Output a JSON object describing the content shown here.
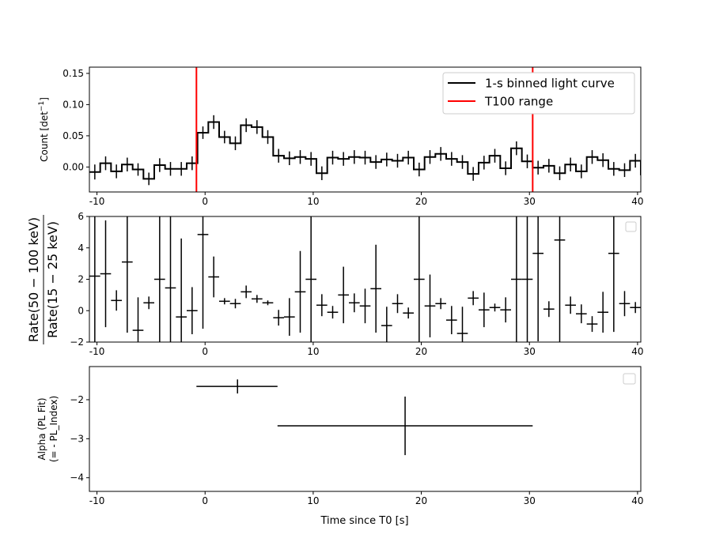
{
  "chart_data": [
    {
      "type": "line",
      "subtype": "step-with-errorbars",
      "ylabel_main": "Count [det",
      "ylabel_sup": "−1",
      "ylabel_end": "]",
      "xlim": [
        -10.7,
        40.3
      ],
      "ylim": [
        -0.04,
        0.16
      ],
      "xticks": [
        -10,
        0,
        10,
        20,
        30,
        40
      ],
      "yticks": [
        -0.05,
        0.0,
        0.05,
        0.1,
        0.15
      ],
      "ytick_labels": [
        "−0.05",
        "0.00",
        "0.05",
        "0.10",
        "0.15"
      ],
      "legend": {
        "placement": "top-right",
        "entries": [
          {
            "label": "1-s binned light curve",
            "color": "#000000"
          },
          {
            "label": "T100 range",
            "color": "#ff0000"
          }
        ]
      },
      "t100_range": [
        -0.8,
        30.3
      ],
      "bin_start": -10.7,
      "bin_width": 1.0,
      "values": [
        -0.008,
        0.006,
        -0.007,
        0.004,
        -0.004,
        -0.019,
        0.003,
        -0.003,
        -0.003,
        0.006,
        0.055,
        0.072,
        0.048,
        0.038,
        0.067,
        0.064,
        0.048,
        0.018,
        0.014,
        0.016,
        0.013,
        -0.01,
        0.015,
        0.013,
        0.016,
        0.015,
        0.008,
        0.012,
        0.01,
        0.015,
        -0.004,
        0.016,
        0.021,
        0.013,
        0.008,
        -0.011,
        0.007,
        0.018,
        -0.002,
        0.03,
        0.009,
        -0.001,
        0.002,
        -0.01,
        0.004,
        -0.007,
        0.016,
        0.011,
        -0.003,
        -0.005,
        0.01,
        -0.012
      ],
      "errors": [
        0.012,
        0.011,
        0.011,
        0.011,
        0.01,
        0.01,
        0.011,
        0.011,
        0.011,
        0.011,
        0.01,
        0.011,
        0.01,
        0.011,
        0.011,
        0.011,
        0.011,
        0.011,
        0.011,
        0.011,
        0.011,
        0.011,
        0.011,
        0.011,
        0.011,
        0.011,
        0.011,
        0.011,
        0.011,
        0.011,
        0.011,
        0.011,
        0.011,
        0.011,
        0.011,
        0.011,
        0.011,
        0.011,
        0.011,
        0.011,
        0.011,
        0.011,
        0.011,
        0.011,
        0.011,
        0.011,
        0.011,
        0.011,
        0.011,
        0.011,
        0.011,
        0.011
      ]
    },
    {
      "type": "scatter",
      "subtype": "errorbar",
      "ylabel_top": "Rate(50 − 100 keV)",
      "ylabel_bottom": "Rate(15 − 25 keV)",
      "xlim": [
        -10.7,
        40.3
      ],
      "ylim": [
        -2,
        6
      ],
      "xticks": [
        -10,
        0,
        10,
        20,
        30,
        40
      ],
      "yticks": [
        -2,
        0,
        2,
        4,
        6
      ],
      "ytick_labels": [
        "−2",
        "0",
        "2",
        "4",
        "6"
      ],
      "legend": {
        "placement": "top-right",
        "entries": []
      },
      "points": [
        {
          "x": -10.2,
          "y": 2.2,
          "xerr": 0.5,
          "yerr": 5.0
        },
        {
          "x": -9.2,
          "y": 2.35,
          "xerr": 0.5,
          "yerr": 3.4
        },
        {
          "x": -8.2,
          "y": 0.65,
          "xerr": 0.5,
          "yerr": 0.65
        },
        {
          "x": -7.2,
          "y": 3.1,
          "xerr": 0.5,
          "yerr": 4.5
        },
        {
          "x": -6.2,
          "y": -1.25,
          "xerr": 0.5,
          "yerr": 2.1
        },
        {
          "x": -5.2,
          "y": 0.5,
          "xerr": 0.5,
          "yerr": 0.4
        },
        {
          "x": -4.2,
          "y": 2.0,
          "xerr": 0.5,
          "yerr": 5.0
        },
        {
          "x": -3.2,
          "y": 1.45,
          "xerr": 0.5,
          "yerr": 5.0
        },
        {
          "x": -2.2,
          "y": -0.4,
          "xerr": 0.5,
          "yerr": 5.0
        },
        {
          "x": -1.2,
          "y": 0.0,
          "xerr": 0.5,
          "yerr": 1.5
        },
        {
          "x": -0.2,
          "y": 4.85,
          "xerr": 0.5,
          "yerr": 6.0
        },
        {
          "x": 0.8,
          "y": 2.15,
          "xerr": 0.5,
          "yerr": 1.3
        },
        {
          "x": 1.8,
          "y": 0.6,
          "xerr": 0.5,
          "yerr": 0.2
        },
        {
          "x": 2.8,
          "y": 0.45,
          "xerr": 0.5,
          "yerr": 0.3
        },
        {
          "x": 3.8,
          "y": 1.2,
          "xerr": 0.5,
          "yerr": 0.4
        },
        {
          "x": 4.8,
          "y": 0.75,
          "xerr": 0.5,
          "yerr": 0.25
        },
        {
          "x": 5.8,
          "y": 0.5,
          "xerr": 0.5,
          "yerr": 0.15
        },
        {
          "x": 6.8,
          "y": -0.45,
          "xerr": 0.5,
          "yerr": 0.5
        },
        {
          "x": 7.8,
          "y": -0.4,
          "xerr": 0.5,
          "yerr": 1.2
        },
        {
          "x": 8.8,
          "y": 1.2,
          "xerr": 0.5,
          "yerr": 2.6
        },
        {
          "x": 9.8,
          "y": 2.0,
          "xerr": 0.5,
          "yerr": 5.0
        },
        {
          "x": 10.8,
          "y": 0.35,
          "xerr": 0.5,
          "yerr": 0.7
        },
        {
          "x": 11.8,
          "y": -0.1,
          "xerr": 0.5,
          "yerr": 0.4
        },
        {
          "x": 12.8,
          "y": 1.0,
          "xerr": 0.5,
          "yerr": 1.8
        },
        {
          "x": 13.8,
          "y": 0.5,
          "xerr": 0.5,
          "yerr": 0.6
        },
        {
          "x": 14.8,
          "y": 0.3,
          "xerr": 0.5,
          "yerr": 1.1
        },
        {
          "x": 15.8,
          "y": 1.4,
          "xerr": 0.5,
          "yerr": 2.8
        },
        {
          "x": 16.8,
          "y": -0.95,
          "xerr": 0.5,
          "yerr": 1.2
        },
        {
          "x": 17.8,
          "y": 0.45,
          "xerr": 0.5,
          "yerr": 0.6
        },
        {
          "x": 18.8,
          "y": -0.15,
          "xerr": 0.5,
          "yerr": 0.35
        },
        {
          "x": 19.8,
          "y": 2.0,
          "xerr": 0.5,
          "yerr": 5.0
        },
        {
          "x": 20.8,
          "y": 0.3,
          "xerr": 0.5,
          "yerr": 2.0
        },
        {
          "x": 21.8,
          "y": 0.45,
          "xerr": 0.5,
          "yerr": 0.35
        },
        {
          "x": 22.8,
          "y": -0.6,
          "xerr": 0.5,
          "yerr": 0.9
        },
        {
          "x": 23.8,
          "y": -1.45,
          "xerr": 0.5,
          "yerr": 1.7
        },
        {
          "x": 24.8,
          "y": 0.8,
          "xerr": 0.5,
          "yerr": 0.45
        },
        {
          "x": 25.8,
          "y": 0.05,
          "xerr": 0.5,
          "yerr": 1.1
        },
        {
          "x": 26.8,
          "y": 0.2,
          "xerr": 0.5,
          "yerr": 0.25
        },
        {
          "x": 27.8,
          "y": 0.05,
          "xerr": 0.5,
          "yerr": 0.8
        },
        {
          "x": 28.8,
          "y": 2.0,
          "xerr": 0.5,
          "yerr": 5.0
        },
        {
          "x": 29.8,
          "y": 2.0,
          "xerr": 0.5,
          "yerr": 5.0
        },
        {
          "x": 30.8,
          "y": 3.65,
          "xerr": 0.5,
          "yerr": 5.6
        },
        {
          "x": 31.8,
          "y": 0.1,
          "xerr": 0.5,
          "yerr": 0.5
        },
        {
          "x": 32.8,
          "y": 4.5,
          "xerr": 0.5,
          "yerr": 6.5
        },
        {
          "x": 33.8,
          "y": 0.35,
          "xerr": 0.5,
          "yerr": 0.55
        },
        {
          "x": 34.8,
          "y": -0.2,
          "xerr": 0.5,
          "yerr": 0.6
        },
        {
          "x": 35.8,
          "y": -0.85,
          "xerr": 0.5,
          "yerr": 0.5
        },
        {
          "x": 36.8,
          "y": -0.1,
          "xerr": 0.5,
          "yerr": 1.3
        },
        {
          "x": 37.8,
          "y": 3.65,
          "xerr": 0.5,
          "yerr": 5.0
        },
        {
          "x": 38.8,
          "y": 0.45,
          "xerr": 0.5,
          "yerr": 0.8
        },
        {
          "x": 39.8,
          "y": 0.2,
          "xerr": 0.5,
          "yerr": 0.35
        }
      ]
    },
    {
      "type": "scatter",
      "subtype": "errorbar",
      "ylabel_top": "Alpha (PL Fit)",
      "ylabel_bottom": "(= - PL_Index)",
      "xlabel": "Time since T0 [s]",
      "xlim": [
        -10.7,
        40.3
      ],
      "ylim": [
        -4.35,
        -1.15
      ],
      "xticks": [
        -10,
        0,
        10,
        20,
        30,
        40
      ],
      "yticks": [
        -4,
        -3,
        -2
      ],
      "ytick_labels": [
        "−4",
        "−3",
        "−2"
      ],
      "legend": {
        "placement": "top-right",
        "entries": []
      },
      "points": [
        {
          "x": 3.0,
          "y": -1.66,
          "x_low": -0.8,
          "x_high": 6.7,
          "yerr": 0.18
        },
        {
          "x": 18.5,
          "y": -2.67,
          "x_low": 6.7,
          "x_high": 30.3,
          "yerr": 0.75
        }
      ]
    }
  ]
}
